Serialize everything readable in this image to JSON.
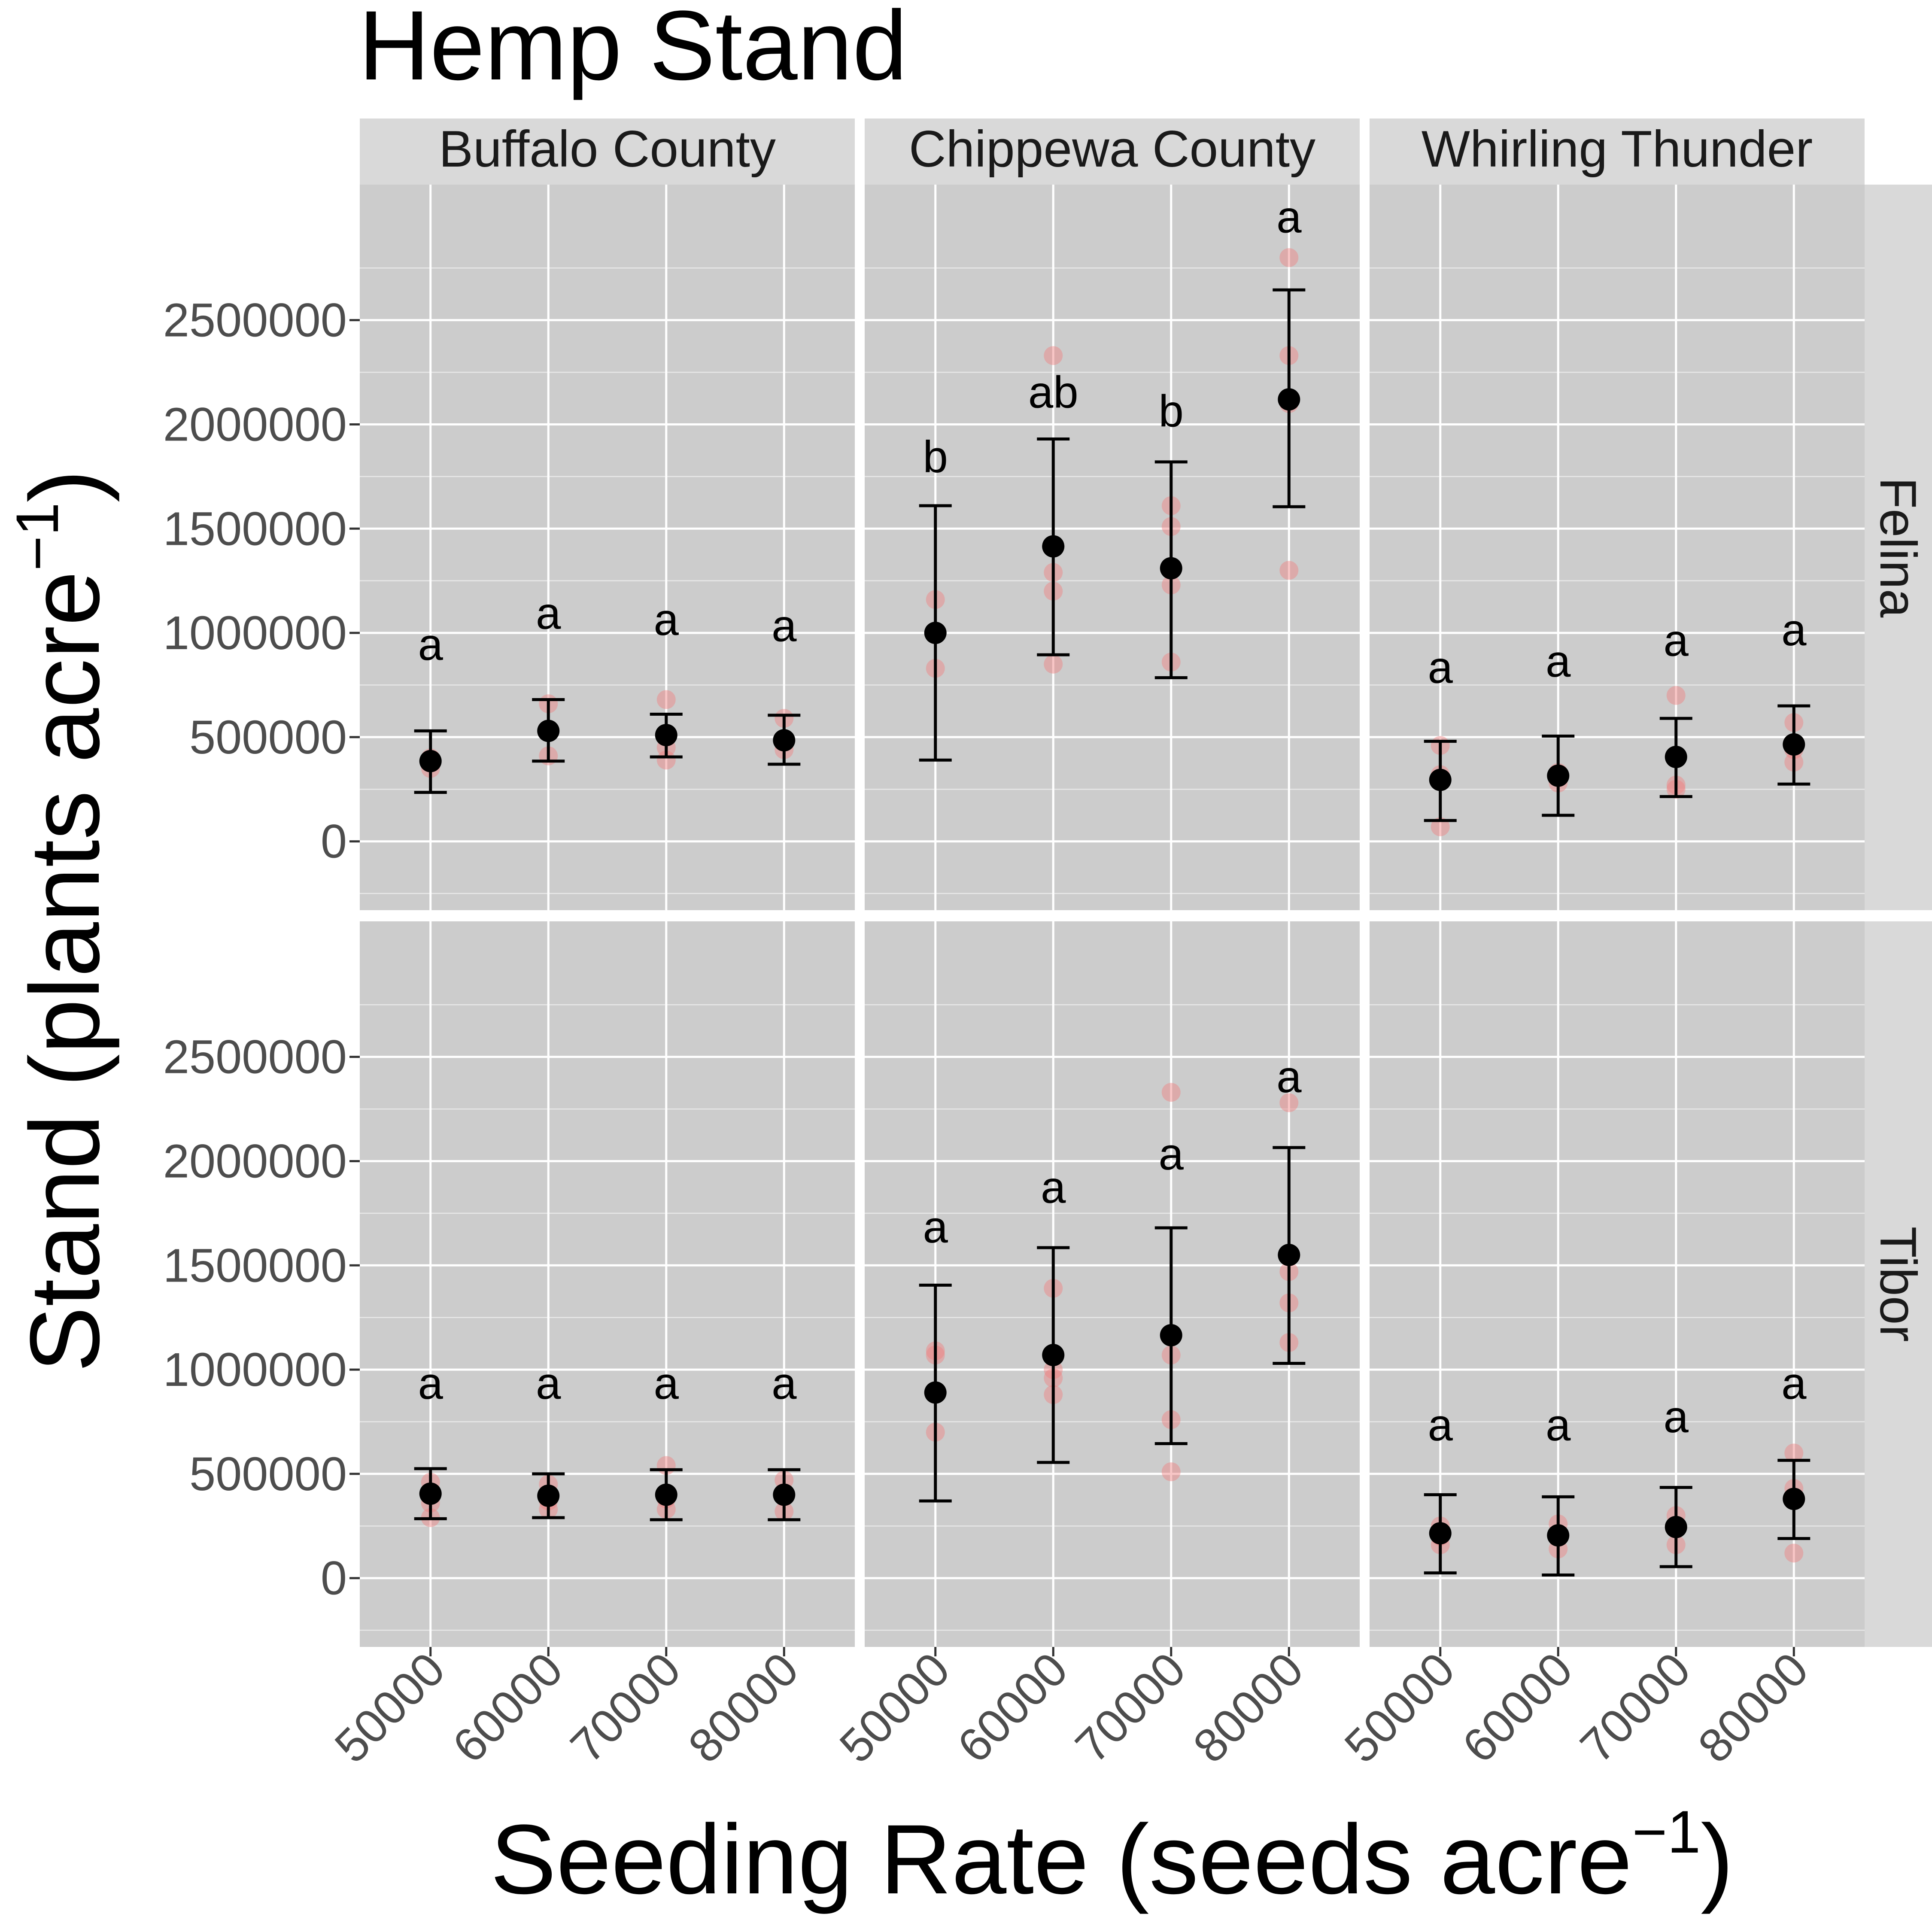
{
  "chart_data": {
    "type": "scatter",
    "title": "Hemp Stand",
    "xlabel": "Seeding Rate (seeds acre",
    "xlabel_sup": "−1",
    "xlabel_end": ")",
    "ylabel": "Stand (plants acre",
    "ylabel_sup": "−1",
    "ylabel_end": ")",
    "x_categories": [
      "50000",
      "60000",
      "70000",
      "80000"
    ],
    "y_ticks": [
      0,
      500000,
      1000000,
      1500000,
      2000000,
      2500000
    ],
    "y_tick_labels": [
      "0",
      "500000",
      "1000000",
      "1500000",
      "2000000",
      "2500000"
    ],
    "ylim": [
      -330000,
      3150000
    ],
    "grid": true,
    "colors": {
      "panel_bg": "#cccccc",
      "strip_bg": "#d9d9d9",
      "grid": "#ffffff",
      "mean": "#000000",
      "raw_points": "#f08080",
      "tick_text": "#4d4d4d",
      "text": "#000000"
    },
    "facet_columns": [
      "Buffalo County",
      "Chippewa County",
      "Whirling Thunder"
    ],
    "facet_rows": [
      "Felina",
      "Tibor"
    ],
    "panels": [
      {
        "row": "Felina",
        "column": "Buffalo County",
        "means": [
          385000,
          530000,
          510000,
          485000
        ],
        "error_low": [
          235000,
          385000,
          405000,
          370000
        ],
        "error_high": [
          530000,
          680000,
          610000,
          605000
        ],
        "letters": [
          "a",
          "a",
          "a",
          "a"
        ],
        "letter_y": [
          870000,
          1020000,
          990000,
          960000
        ],
        "raw": [
          [
            350000,
            400000
          ],
          [
            410000,
            660000
          ],
          [
            390000,
            680000,
            450000
          ],
          [
            440000,
            590000
          ]
        ]
      },
      {
        "row": "Felina",
        "column": "Chippewa County",
        "means": [
          1000000,
          1415000,
          1310000,
          2120000
        ],
        "error_low": [
          390000,
          895000,
          785000,
          1605000
        ],
        "error_high": [
          1610000,
          1930000,
          1820000,
          2645000
        ],
        "letters": [
          "b",
          "ab",
          "b",
          "a"
        ],
        "letter_y": [
          1770000,
          2080000,
          1990000,
          2920000
        ],
        "raw": [
          [
            830000,
            1160000
          ],
          [
            850000,
            1200000,
            1290000,
            2330000
          ],
          [
            860000,
            1230000,
            1510000,
            1610000
          ],
          [
            1300000,
            2100000,
            2330000,
            2800000
          ]
        ]
      },
      {
        "row": "Felina",
        "column": "Whirling Thunder",
        "means": [
          295000,
          315000,
          405000,
          465000
        ],
        "error_low": [
          100000,
          125000,
          215000,
          275000
        ],
        "error_high": [
          480000,
          505000,
          590000,
          650000
        ],
        "letters": [
          "a",
          "a",
          "a",
          "a"
        ],
        "letter_y": [
          760000,
          790000,
          890000,
          940000
        ],
        "raw": [
          [
            70000,
            320000,
            460000
          ],
          [
            280000,
            330000
          ],
          [
            250000,
            270000,
            700000
          ],
          [
            380000,
            440000,
            570000
          ]
        ]
      },
      {
        "row": "Tibor",
        "column": "Buffalo County",
        "means": [
          405000,
          395000,
          400000,
          400000
        ],
        "error_low": [
          285000,
          290000,
          280000,
          280000
        ],
        "error_high": [
          525000,
          500000,
          520000,
          520000
        ],
        "letters": [
          "a",
          "a",
          "a",
          "a"
        ],
        "letter_y": [
          860000,
          860000,
          860000,
          860000
        ],
        "raw": [
          [
            290000,
            360000,
            460000
          ],
          [
            330000,
            370000,
            450000
          ],
          [
            330000,
            380000,
            540000
          ],
          [
            320000,
            390000,
            470000
          ]
        ]
      },
      {
        "row": "Tibor",
        "column": "Chippewa County",
        "means": [
          890000,
          1070000,
          1165000,
          1550000
        ],
        "error_low": [
          370000,
          555000,
          645000,
          1030000
        ],
        "error_high": [
          1405000,
          1585000,
          1680000,
          2065000
        ],
        "letters": [
          "a",
          "a",
          "a",
          "a"
        ],
        "letter_y": [
          1610000,
          1800000,
          1960000,
          2330000
        ],
        "raw": [
          [
            700000,
            1070000,
            1090000
          ],
          [
            880000,
            960000,
            1000000,
            1390000
          ],
          [
            510000,
            760000,
            1070000,
            2330000
          ],
          [
            1130000,
            1320000,
            1470000,
            2280000
          ]
        ]
      },
      {
        "row": "Tibor",
        "column": "Whirling Thunder",
        "means": [
          215000,
          205000,
          245000,
          380000
        ],
        "error_low": [
          25000,
          15000,
          55000,
          190000
        ],
        "error_high": [
          400000,
          390000,
          435000,
          565000
        ],
        "letters": [
          "a",
          "a",
          "a",
          "a"
        ],
        "letter_y": [
          660000,
          660000,
          700000,
          860000
        ],
        "raw": [
          [
            160000,
            200000,
            250000
          ],
          [
            140000,
            210000,
            260000
          ],
          [
            160000,
            240000,
            300000
          ],
          [
            120000,
            380000,
            430000,
            600000
          ]
        ]
      }
    ]
  }
}
